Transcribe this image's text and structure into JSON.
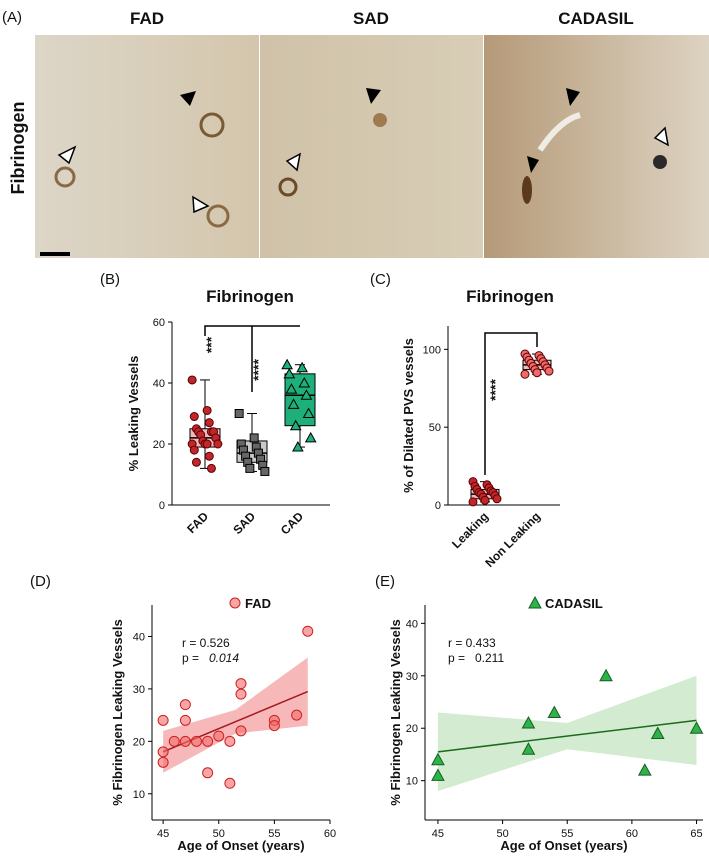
{
  "panel_a": {
    "label": "(A)",
    "row_label": "Fibrinogen",
    "titles": [
      "FAD",
      "SAD",
      "CADASIL"
    ]
  },
  "chart_data": [
    {
      "type": "box",
      "label": "(B)",
      "title": "Fibrinogen",
      "ylabel": "% Leaking Vessels",
      "categories": [
        "FAD",
        "SAD",
        "CAD"
      ],
      "colors": [
        "#c0262b",
        "#8c8c8c",
        "#1db07a"
      ],
      "box_fill": [
        "#f2b8bb",
        "#c9c9c9",
        "#1db07a"
      ],
      "boxes": [
        {
          "min": 12,
          "q1": 19,
          "median": 22,
          "q3": 25,
          "max": 41
        },
        {
          "min": 11,
          "q1": 14,
          "median": 17,
          "q3": 21,
          "max": 30
        },
        {
          "min": 19,
          "q1": 26,
          "median": 36,
          "q3": 43,
          "max": 46
        }
      ],
      "points": [
        [
          41,
          31,
          29,
          27,
          25,
          24,
          24,
          24,
          23,
          22,
          21,
          20,
          20,
          20,
          20,
          18,
          16,
          14,
          12
        ],
        [
          30,
          22,
          20,
          19,
          18,
          17,
          16,
          15,
          14,
          13,
          12,
          11
        ],
        [
          46,
          45,
          43,
          40,
          38,
          36,
          33,
          30,
          26,
          22,
          19
        ]
      ],
      "ylim": [
        0,
        60
      ],
      "yticks": [
        0,
        20,
        40,
        60
      ],
      "annotations": [
        "***",
        "****"
      ]
    },
    {
      "type": "box",
      "label": "(C)",
      "title": "Fibrinogen",
      "ylabel": "% of Dilated PVS vessels",
      "categories": [
        "Leaking",
        "Non Leaking"
      ],
      "colors": [
        "#c0262b",
        "#f06a6a"
      ],
      "box_fill": [
        "#f2b8bb",
        "#f2b8bb"
      ],
      "boxes": [
        {
          "min": 2,
          "q1": 4,
          "median": 7,
          "q3": 10,
          "max": 15
        },
        {
          "min": 84,
          "q1": 87,
          "median": 90,
          "q3": 93,
          "max": 97
        }
      ],
      "points": [
        [
          15,
          13,
          12,
          11,
          10,
          9,
          8,
          8,
          7,
          6,
          5,
          4,
          3,
          2
        ],
        [
          97,
          96,
          95,
          94,
          93,
          92,
          91,
          90,
          89,
          88,
          87,
          86,
          85,
          84
        ]
      ],
      "ylim": [
        0,
        115
      ],
      "yticks": [
        0,
        50,
        100
      ],
      "annotations": [
        "****"
      ]
    },
    {
      "type": "scatter",
      "label": "(D)",
      "xlabel": "Age of Onset (years)",
      "ylabel": "% Fibrinogen Leaking Vessels",
      "marker": "circle",
      "series": [
        {
          "name": "FAD",
          "color": "#f06a6a",
          "x": [
            45,
            45,
            45,
            46,
            47,
            47,
            47,
            48,
            49,
            49,
            50,
            51,
            51,
            52,
            52,
            52,
            55,
            55,
            57,
            58
          ],
          "y": [
            24,
            18,
            16,
            20,
            27,
            24,
            20,
            20,
            20,
            14,
            21,
            20,
            12,
            31,
            29,
            22,
            24,
            23,
            25,
            41
          ]
        }
      ],
      "fit": {
        "x": [
          45,
          58
        ],
        "y": [
          18,
          29.5
        ]
      },
      "band": {
        "x": [
          45,
          51.5,
          58
        ],
        "lower": [
          14,
          21.5,
          23
        ],
        "upper": [
          22,
          26,
          36
        ]
      },
      "band_color": "#f4a6a8",
      "line_color": "#a8181e",
      "r_text": "r = 0.526",
      "p_text": "p =",
      "p_value": "0.014",
      "p_italic": true,
      "xlim": [
        44,
        60
      ],
      "xticks": [
        45,
        50,
        55,
        60
      ],
      "ylim": [
        5,
        46
      ],
      "yticks": [
        10,
        20,
        30,
        40
      ]
    },
    {
      "type": "scatter",
      "label": "(E)",
      "xlabel": "Age of Onset (years)",
      "ylabel": "% Fibrinogen Leaking Vessels",
      "marker": "triangle",
      "series": [
        {
          "name": "CADASIL",
          "color": "#2db34a",
          "x": [
            45,
            45,
            52,
            52,
            54,
            58,
            61,
            62,
            65
          ],
          "y": [
            14,
            11,
            21,
            16,
            23,
            30,
            12,
            19,
            20
          ]
        }
      ],
      "fit": {
        "x": [
          45,
          65
        ],
        "y": [
          15.5,
          21.5
        ]
      },
      "band": {
        "x": [
          45,
          55,
          65
        ],
        "lower": [
          8,
          16,
          13
        ],
        "upper": [
          23,
          21,
          30
        ]
      },
      "band_color": "#c8e6c4",
      "line_color": "#1a6b1e",
      "r_text": "r = 0.433",
      "p_text": "p =",
      "p_value": "0.211",
      "p_italic": false,
      "xlim": [
        44,
        65.5
      ],
      "xticks": [
        45,
        50,
        55,
        60,
        65
      ],
      "ylim": [
        2.5,
        43.5
      ],
      "yticks": [
        10,
        20,
        30,
        40
      ]
    }
  ]
}
